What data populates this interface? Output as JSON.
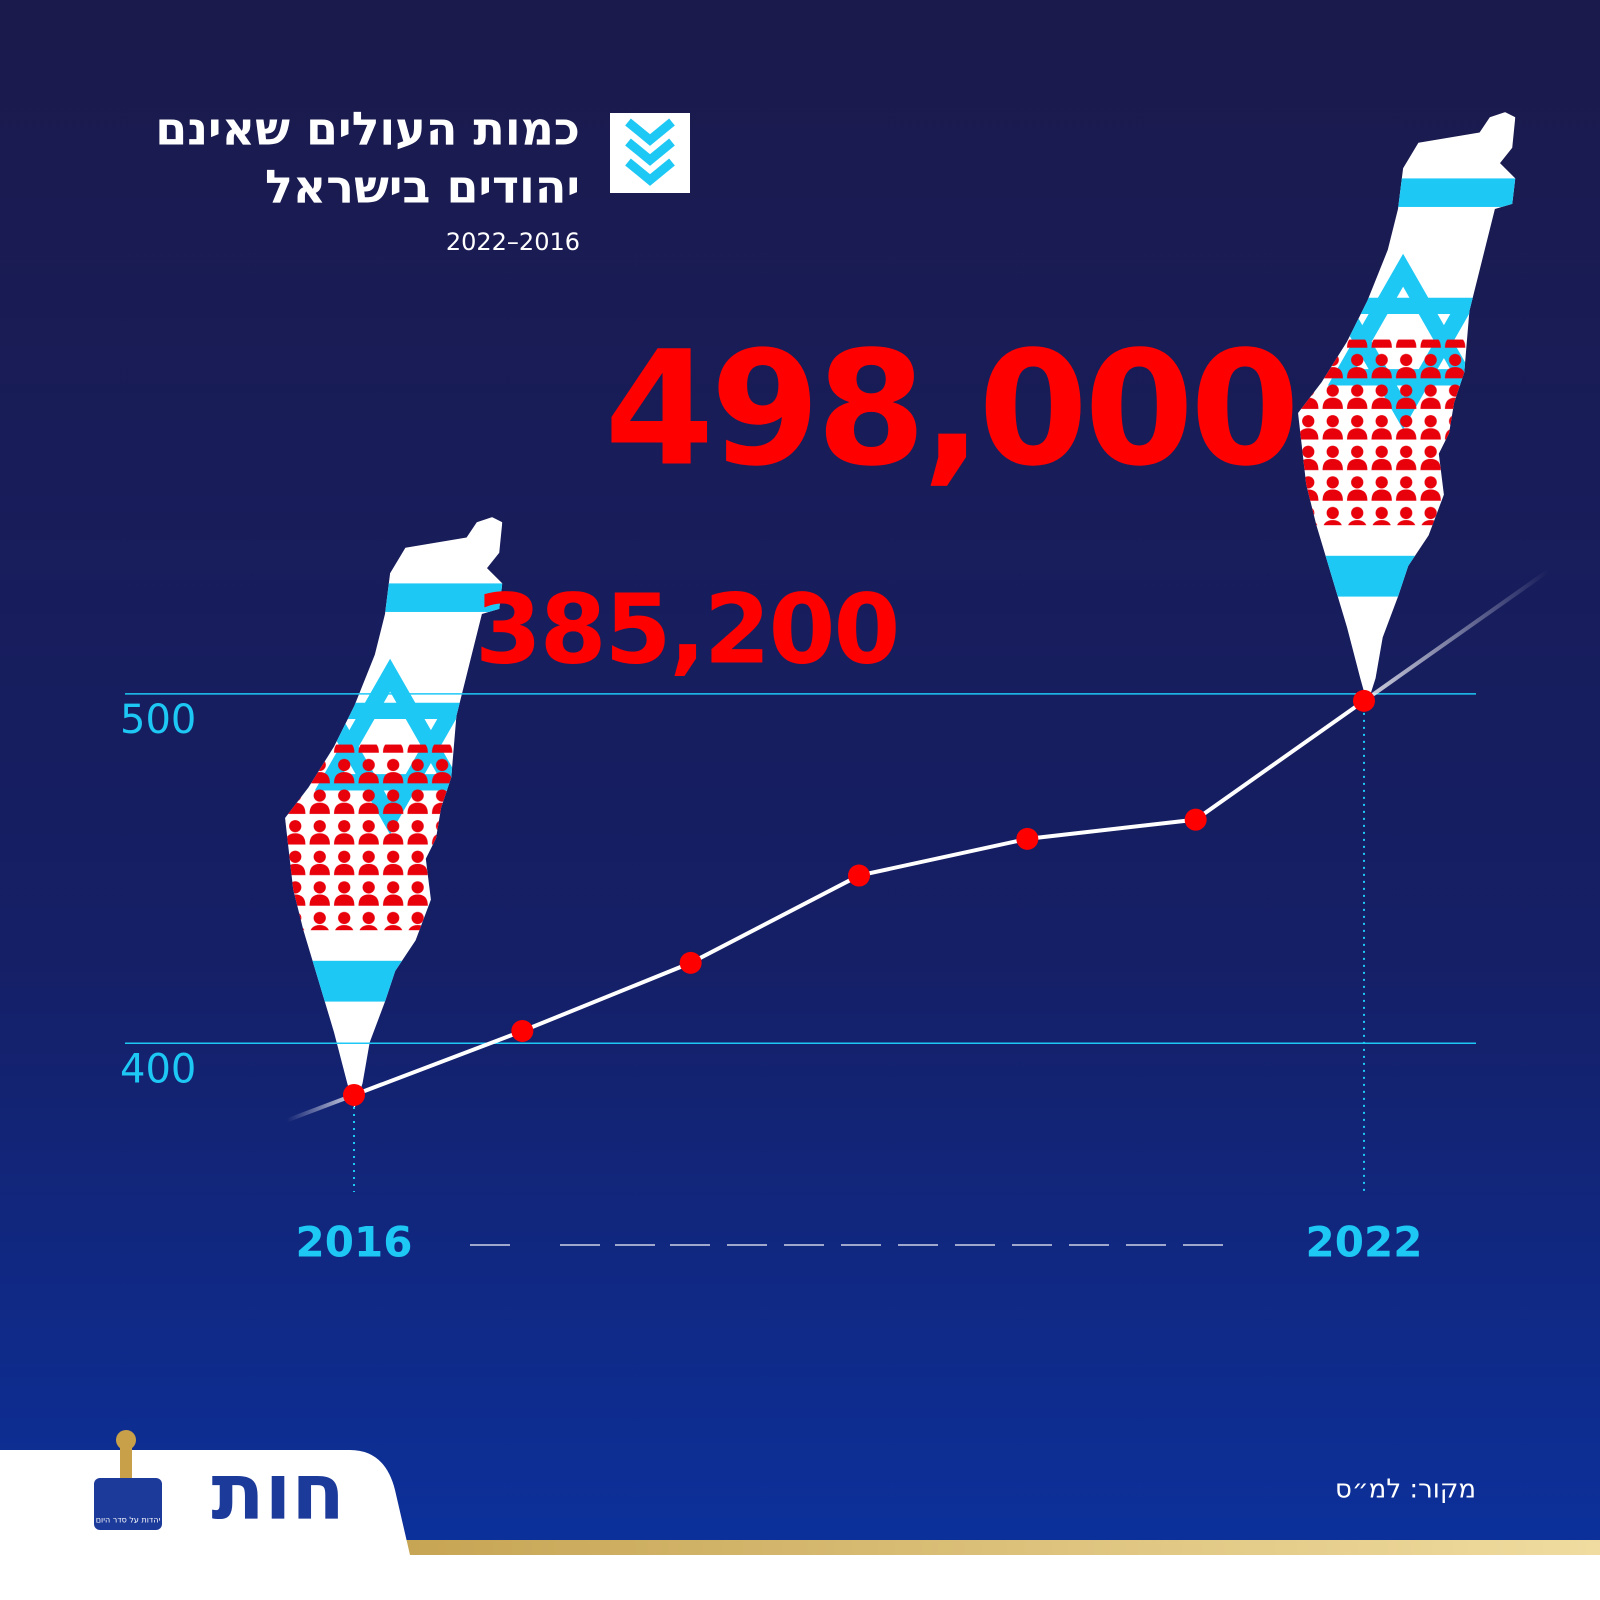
{
  "chart_data": {
    "type": "line",
    "title": "כמות העולים שאינם",
    "title_line2": "יהודים בישראל",
    "subtitle": "2022–2016",
    "categories": [
      "2016",
      null,
      null,
      null,
      null,
      null,
      "2022"
    ],
    "series": [
      {
        "color": "#ffffff",
        "marker_color": "#ff0000",
        "values": [
          385.2,
          403.5,
          423,
          448,
          458.5,
          464,
          498
        ],
        "value_labels": [
          "385,200",
          null,
          null,
          null,
          null,
          null,
          "498,000"
        ]
      }
    ],
    "ylim": [
      360,
      520
    ],
    "yticks": [
      400,
      500
    ],
    "grid": true,
    "source": "מקור: למ״ס",
    "logo": "חות",
    "logo_tagline": "יהדות על סדר היום"
  }
}
